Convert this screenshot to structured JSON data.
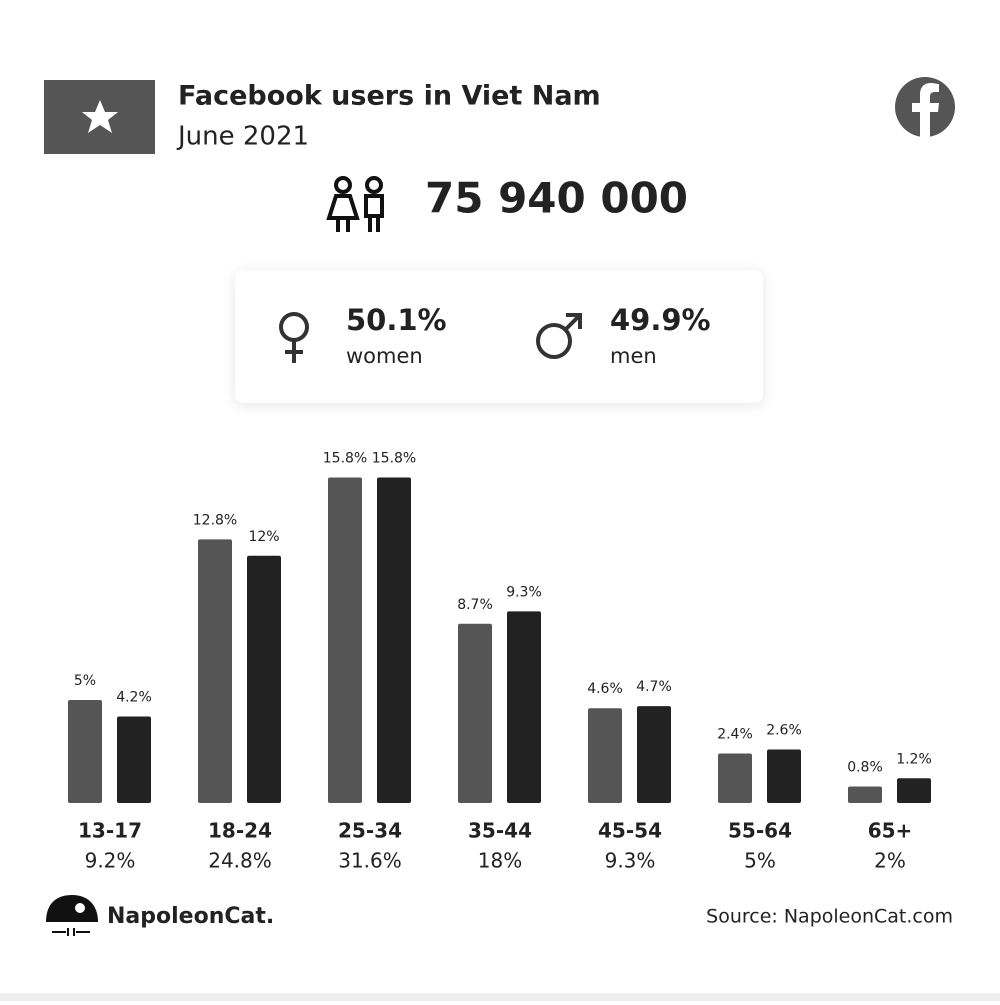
{
  "header": {
    "title": "Facebook users in Viet Nam",
    "subtitle": "June 2021"
  },
  "total_users": "75 940 000",
  "chart_data": {
    "type": "bar",
    "categories": [
      "13-17",
      "18-24",
      "25-34",
      "35-44",
      "45-54",
      "55-64",
      "65+"
    ],
    "category_totals": [
      "9.2%",
      "24.8%",
      "31.6%",
      "18%",
      "9.3%",
      "5%",
      "2%"
    ],
    "series": [
      {
        "name": "women",
        "share": "50.1%",
        "color": "#555555",
        "values": [
          5,
          12.8,
          15.8,
          8.7,
          4.6,
          2.4,
          0.8
        ],
        "value_labels": [
          "5%",
          "12.8%",
          "15.8%",
          "8.7%",
          "4.6%",
          "2.4%",
          "0.8%"
        ]
      },
      {
        "name": "men",
        "share": "49.9%",
        "color": "#222222",
        "values": [
          4.2,
          12,
          15.8,
          9.3,
          4.7,
          2.6,
          1.2
        ],
        "value_labels": [
          "4.2%",
          "12%",
          "15.8%",
          "9.3%",
          "4.7%",
          "2.6%",
          "1.2%"
        ]
      }
    ]
  },
  "footer": {
    "brand": "NapoleonCat.",
    "source": "Source: NapoleonCat.com"
  }
}
